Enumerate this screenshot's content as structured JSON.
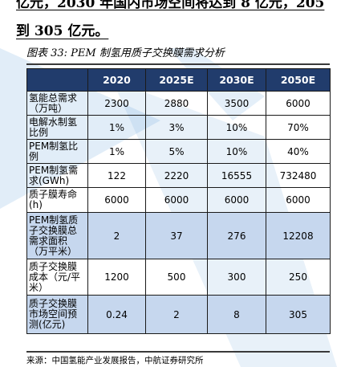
{
  "header": {
    "line1": "亿元，2030 年国内市场空间将达到 8 亿元，205",
    "line2": "到 305 亿元。"
  },
  "caption": "图表 33: PEM 制氢用质子交换膜需求分析",
  "table": {
    "columns": [
      "",
      "2020",
      "2025E",
      "2030E",
      "2050E"
    ],
    "rows": [
      {
        "label": "氢能总需求（万吨）",
        "values": [
          "2300",
          "2880",
          "3500",
          "6000"
        ]
      },
      {
        "label": "电解水制氢比例",
        "values": [
          "1%",
          "3%",
          "10%",
          "70%"
        ]
      },
      {
        "label": "PEM制氢比例",
        "values": [
          "1%",
          "5%",
          "10%",
          "40%"
        ]
      },
      {
        "label": "PEM制氢需求(GWh)",
        "values": [
          "122",
          "2220",
          "16555",
          "732480"
        ]
      },
      {
        "label": "质子膜寿命(h)",
        "values": [
          "6000",
          "6000",
          "6000",
          "6000"
        ]
      },
      {
        "label": "PEM制氢质子交换膜总需求面积（万平米）",
        "values": [
          "2",
          "37",
          "276",
          "12208"
        ]
      },
      {
        "label": "质子交换膜成本（元/平米）",
        "values": [
          "1200",
          "500",
          "300",
          "250"
        ]
      },
      {
        "label": "质子交换膜市场空间预测(亿元)",
        "values": [
          "0.24",
          "2",
          "8",
          "305"
        ]
      }
    ]
  },
  "source": "来源：中国氢能产业发展报告，中航证券研究所",
  "colors": {
    "header_bg": "#213c6c",
    "shade_bg": "#c6d7ee",
    "watermark": "#5a9ad8"
  }
}
